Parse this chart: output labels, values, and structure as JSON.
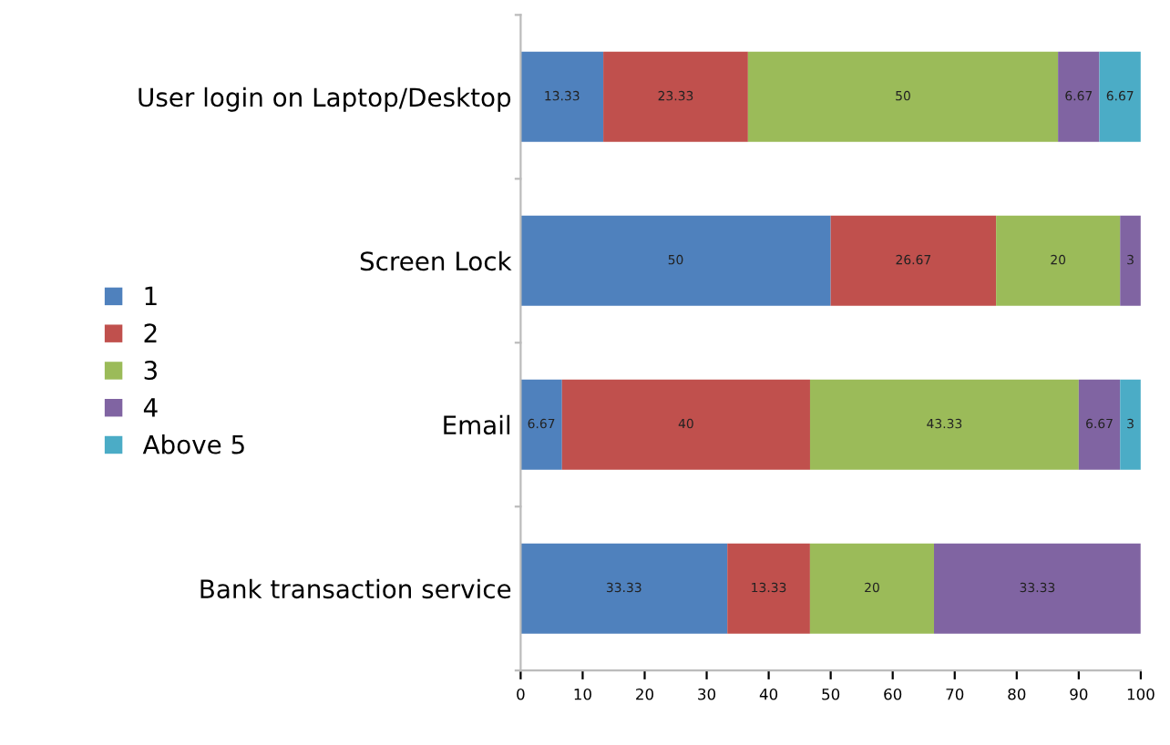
{
  "chart_data": {
    "type": "bar",
    "orientation": "horizontal",
    "stacked": true,
    "legend": "left",
    "grid": false,
    "categories": [
      "User login on Laptop/Desktop",
      "Screen Lock",
      "Email",
      "Bank transaction service"
    ],
    "xlim": [
      0,
      100
    ],
    "xticks": [
      0,
      10,
      20,
      30,
      40,
      50,
      60,
      70,
      80,
      90,
      100
    ],
    "series": [
      {
        "name": "1",
        "color": "#4f81bd",
        "values": [
          13.33,
          50,
          6.67,
          33.33
        ],
        "value_labels": [
          "13.33",
          "50",
          "6.67",
          "33.33"
        ]
      },
      {
        "name": "2",
        "color": "#c0504d",
        "values": [
          23.33,
          26.67,
          40,
          13.33
        ],
        "value_labels": [
          "23.33",
          "26.67",
          "40",
          "13.33"
        ]
      },
      {
        "name": "3",
        "color": "#9bbb59",
        "values": [
          50,
          20,
          43.33,
          20
        ],
        "value_labels": [
          "50",
          "20",
          "43.33",
          "20"
        ]
      },
      {
        "name": "4",
        "color": "#8064a2",
        "values": [
          6.67,
          3.33,
          6.67,
          33.33
        ],
        "value_labels": [
          "6.67",
          "3",
          "6.67",
          "33.33"
        ]
      },
      {
        "name": "Above 5",
        "color": "#4bacc6",
        "values": [
          6.67,
          0,
          3.33,
          0
        ],
        "value_labels": [
          "6.67",
          null,
          "3",
          null
        ]
      }
    ]
  }
}
